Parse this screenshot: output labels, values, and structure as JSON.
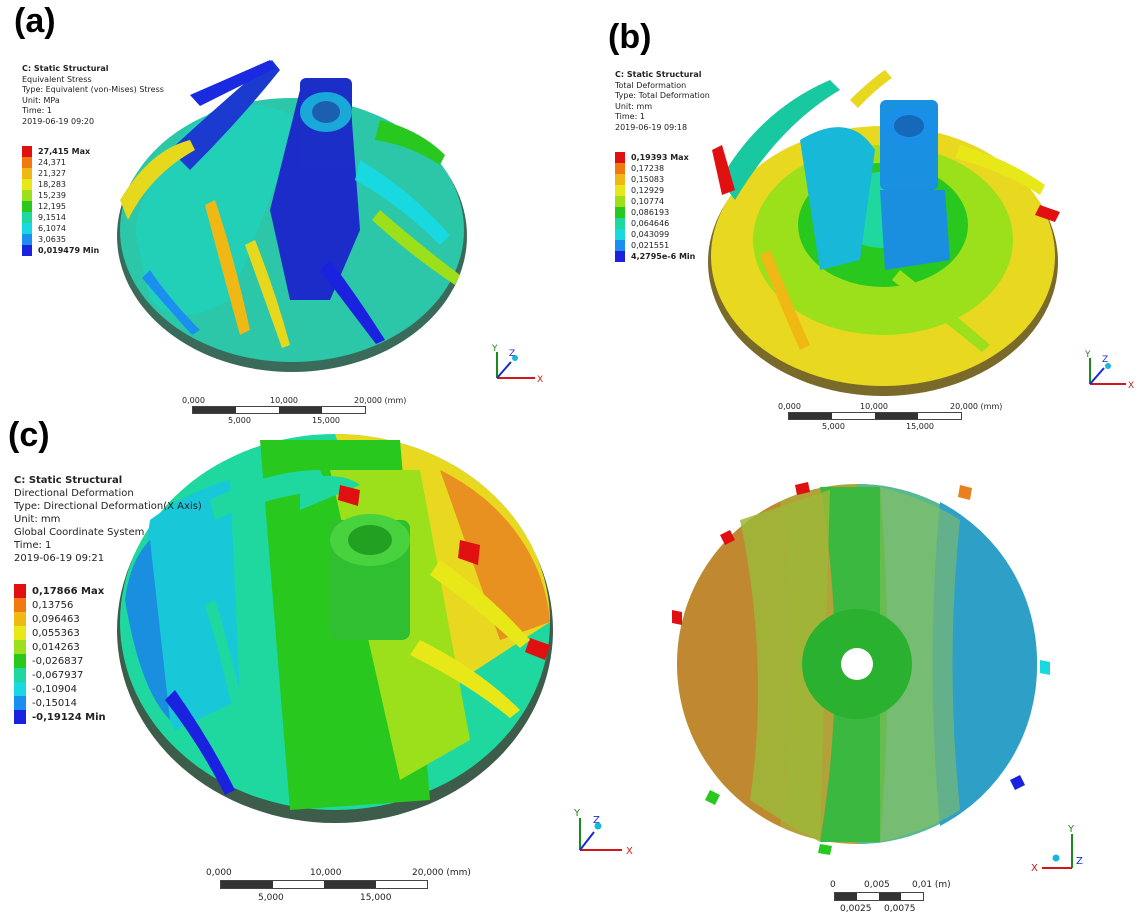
{
  "panels": [
    {
      "label": "(a)",
      "info": [
        "C: Static Structural",
        "Equivalent Stress",
        "Type: Equivalent (von-Mises) Stress",
        "Unit: MPa",
        "Time: 1",
        "2019-06-19 09:20"
      ],
      "legend": [
        {
          "text": "27,415 Max",
          "color": "#e01010",
          "bold": true
        },
        {
          "text": "24,371",
          "color": "#f07a10",
          "bold": false
        },
        {
          "text": "21,327",
          "color": "#f0b814",
          "bold": false
        },
        {
          "text": "18,283",
          "color": "#e8e818",
          "bold": false
        },
        {
          "text": "15,239",
          "color": "#9be01a",
          "bold": false
        },
        {
          "text": "12,195",
          "color": "#28c81e",
          "bold": false
        },
        {
          "text": "9,1514",
          "color": "#1ed8a0",
          "bold": false
        },
        {
          "text": "6,1074",
          "color": "#18d8e0",
          "bold": false
        },
        {
          "text": "3,0635",
          "color": "#1a8ff0",
          "bold": false
        },
        {
          "text": "0,019479 Min",
          "color": "#1a22e0",
          "bold": true
        }
      ],
      "scale": {
        "top": [
          "0,000",
          "10,000",
          "20,000 (mm)"
        ],
        "bottom": [
          "5,000",
          "15,000"
        ]
      }
    },
    {
      "label": "(b)",
      "info": [
        "C: Static Structural",
        "Total Deformation",
        "Type: Total Deformation",
        "Unit: mm",
        "Time: 1",
        "2019-06-19 09:18"
      ],
      "legend": [
        {
          "text": "0,19393 Max",
          "color": "#e01010",
          "bold": true
        },
        {
          "text": "0,17238",
          "color": "#f07a10",
          "bold": false
        },
        {
          "text": "0,15083",
          "color": "#f0b814",
          "bold": false
        },
        {
          "text": "0,12929",
          "color": "#e8e818",
          "bold": false
        },
        {
          "text": "0,10774",
          "color": "#9be01a",
          "bold": false
        },
        {
          "text": "0,086193",
          "color": "#28c81e",
          "bold": false
        },
        {
          "text": "0,064646",
          "color": "#1ed8a0",
          "bold": false
        },
        {
          "text": "0,043099",
          "color": "#18d8e0",
          "bold": false
        },
        {
          "text": "0,021551",
          "color": "#1a8ff0",
          "bold": false
        },
        {
          "text": "4,2795e-6 Min",
          "color": "#1a22e0",
          "bold": true
        }
      ],
      "scale": {
        "top": [
          "0,000",
          "10,000",
          "20,000 (mm)"
        ],
        "bottom": [
          "5,000",
          "15,000"
        ]
      }
    },
    {
      "label": "(c)",
      "info": [
        "C: Static Structural",
        "Directional Deformation",
        "Type: Directional Deformation(X Axis)",
        "Unit: mm",
        "Global Coordinate System",
        "Time: 1",
        "2019-06-19 09:21"
      ],
      "legend": [
        {
          "text": "0,17866 Max",
          "color": "#e01010",
          "bold": true
        },
        {
          "text": "0,13756",
          "color": "#f07a10",
          "bold": false
        },
        {
          "text": "0,096463",
          "color": "#f0b814",
          "bold": false
        },
        {
          "text": "0,055363",
          "color": "#e8e818",
          "bold": false
        },
        {
          "text": "0,014263",
          "color": "#9be01a",
          "bold": false
        },
        {
          "text": "-0,026837",
          "color": "#28c81e",
          "bold": false
        },
        {
          "text": "-0,067937",
          "color": "#1ed8a0",
          "bold": false
        },
        {
          "text": "-0,10904",
          "color": "#18d8e0",
          "bold": false
        },
        {
          "text": "-0,15014",
          "color": "#1a8ff0",
          "bold": false
        },
        {
          "text": "-0,19124 Min",
          "color": "#1a22e0",
          "bold": true
        }
      ],
      "scale": {
        "top": [
          "0,000",
          "10,000",
          "20,000 (mm)"
        ],
        "bottom": [
          "5,000",
          "15,000"
        ]
      }
    },
    {
      "scale": {
        "top": [
          "0",
          "0,005",
          "0,01 (m)"
        ],
        "bottom": [
          "0,0025",
          "0,0075"
        ]
      }
    }
  ],
  "axes": {
    "x": "X",
    "y": "Y",
    "z": "Z"
  }
}
